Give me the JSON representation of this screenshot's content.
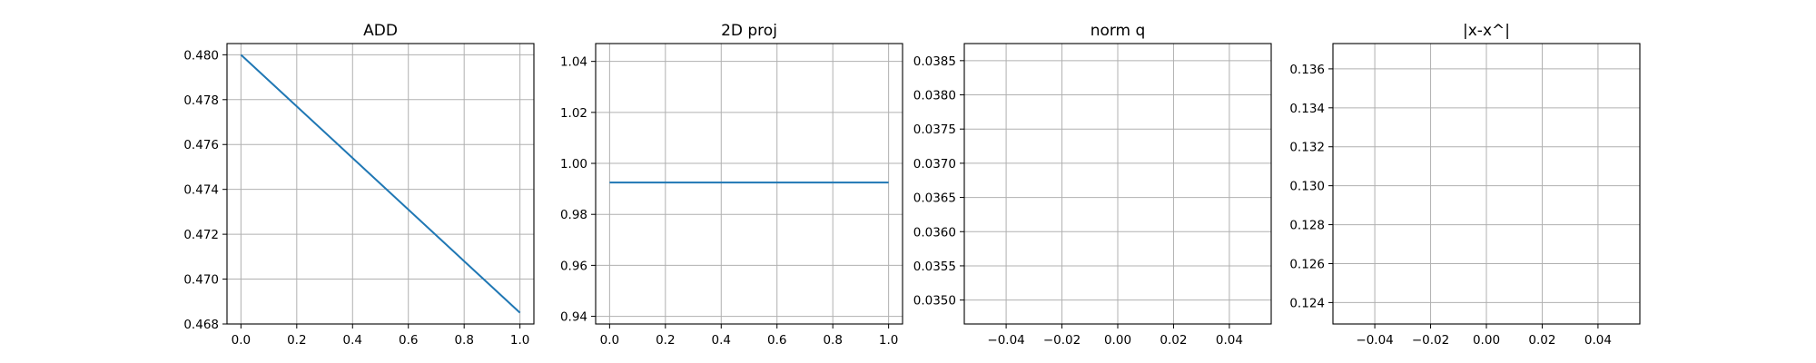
{
  "chart_data": [
    {
      "type": "line",
      "title": "ADD",
      "xlim": [
        -0.05,
        1.05
      ],
      "ylim": [
        0.468,
        0.4805
      ],
      "x_ticks": [
        0.0,
        0.2,
        0.4,
        0.6,
        0.8,
        1.0
      ],
      "x_tick_labels": [
        "0.0",
        "0.2",
        "0.4",
        "0.6",
        "0.8",
        "1.0"
      ],
      "y_ticks": [
        0.468,
        0.47,
        0.472,
        0.474,
        0.476,
        0.478,
        0.48
      ],
      "y_tick_labels": [
        "0.468",
        "0.470",
        "0.472",
        "0.474",
        "0.476",
        "0.478",
        "0.480"
      ],
      "grid": true,
      "series": [
        {
          "x": [
            0.0,
            1.0
          ],
          "y": [
            0.48,
            0.4685
          ],
          "color": "#1f77b4"
        }
      ]
    },
    {
      "type": "line",
      "title": "2D proj",
      "xlim": [
        -0.05,
        1.05
      ],
      "ylim": [
        0.937,
        1.047
      ],
      "x_ticks": [
        0.0,
        0.2,
        0.4,
        0.6,
        0.8,
        1.0
      ],
      "x_tick_labels": [
        "0.0",
        "0.2",
        "0.4",
        "0.6",
        "0.8",
        "1.0"
      ],
      "y_ticks": [
        0.94,
        0.96,
        0.98,
        1.0,
        1.02,
        1.04
      ],
      "y_tick_labels": [
        "0.94",
        "0.96",
        "0.98",
        "1.00",
        "1.02",
        "1.04"
      ],
      "grid": true,
      "series": [
        {
          "x": [
            0.0,
            1.0
          ],
          "y": [
            0.9925,
            0.9925
          ],
          "color": "#1f77b4"
        }
      ]
    },
    {
      "type": "line",
      "title": "norm q",
      "xlim": [
        -0.055,
        0.055
      ],
      "ylim": [
        0.03465,
        0.03875
      ],
      "x_ticks": [
        -0.04,
        -0.02,
        0.0,
        0.02,
        0.04
      ],
      "x_tick_labels": [
        "−0.04",
        "−0.02",
        "0.00",
        "0.02",
        "0.04"
      ],
      "y_ticks": [
        0.035,
        0.0355,
        0.036,
        0.0365,
        0.037,
        0.0375,
        0.038,
        0.0385
      ],
      "y_tick_labels": [
        "0.0350",
        "0.0355",
        "0.0360",
        "0.0365",
        "0.0370",
        "0.0375",
        "0.0380",
        "0.0385"
      ],
      "grid": true,
      "series": []
    },
    {
      "type": "line",
      "title": "|x-x^|",
      "xlim": [
        -0.055,
        0.055
      ],
      "ylim": [
        0.1229,
        0.1373
      ],
      "x_ticks": [
        -0.04,
        -0.02,
        0.0,
        0.02,
        0.04
      ],
      "x_tick_labels": [
        "−0.04",
        "−0.02",
        "0.00",
        "0.02",
        "0.04"
      ],
      "y_ticks": [
        0.124,
        0.126,
        0.128,
        0.13,
        0.132,
        0.134,
        0.136
      ],
      "y_tick_labels": [
        "0.124",
        "0.126",
        "0.128",
        "0.130",
        "0.132",
        "0.134",
        "0.136"
      ],
      "grid": true,
      "series": []
    }
  ]
}
